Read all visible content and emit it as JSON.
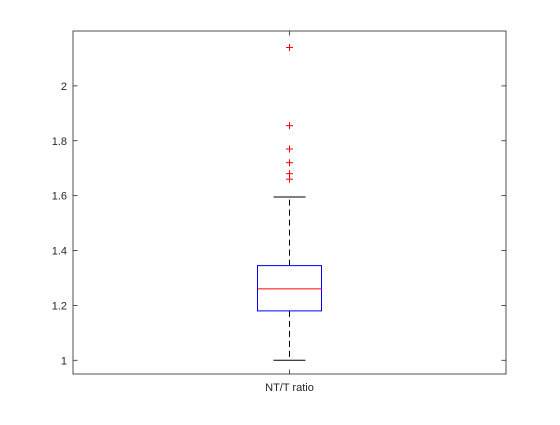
{
  "chart_data": {
    "type": "box",
    "categories": [
      "NT/T ratio"
    ],
    "series": [
      {
        "stats": {
          "whisker_low": 1.0,
          "q1": 1.18,
          "median": 1.26,
          "q3": 1.345,
          "whisker_high": 1.595
        },
        "outliers": [
          1.66,
          1.68,
          1.72,
          1.77,
          1.855,
          2.14
        ]
      }
    ],
    "ylim": [
      0.95,
      2.2
    ],
    "yticks": [
      1,
      1.2,
      1.4,
      1.6,
      1.8,
      2
    ],
    "ytick_labels": [
      "1",
      "1.2",
      "1.4",
      "1.6",
      "1.8",
      "2"
    ],
    "grid": false,
    "colors": {
      "box": "#0000ff",
      "median": "#ff0000",
      "whisker": "#000000",
      "outlier": "#ff0000",
      "axes": "#262626"
    }
  }
}
